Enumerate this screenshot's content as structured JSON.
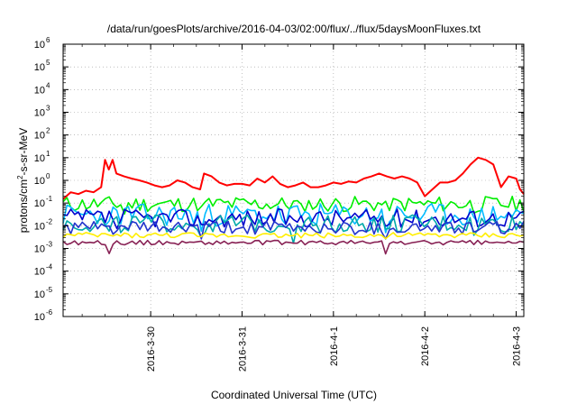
{
  "chart_data": {
    "type": "line",
    "title": "/data/run/goesPlots/archive/2016-04-03/02:00/flux/../flux/5daysMoonFluxes.txt",
    "xlabel": "Coordinated Universal Time (UTC)",
    "ylabel_parts": [
      "protons/cm",
      "2",
      "-s-sr-MeV"
    ],
    "y_scale": "log",
    "ylim": [
      1e-06,
      1000000.0
    ],
    "y_ticks": [
      {
        "base": "10",
        "exp": "6",
        "value": 1000000.0
      },
      {
        "base": "10",
        "exp": "5",
        "value": 100000.0
      },
      {
        "base": "10",
        "exp": "4",
        "value": 10000.0
      },
      {
        "base": "10",
        "exp": "3",
        "value": 1000.0
      },
      {
        "base": "10",
        "exp": "2",
        "value": 100.0
      },
      {
        "base": "10",
        "exp": "1",
        "value": 10.0
      },
      {
        "base": "10",
        "exp": "0",
        "value": 1.0
      },
      {
        "base": "10",
        "exp": "-1",
        "value": 0.1
      },
      {
        "base": "10",
        "exp": "-2",
        "value": 0.01
      },
      {
        "base": "10",
        "exp": "-3",
        "value": 0.001
      },
      {
        "base": "10",
        "exp": "-4",
        "value": 0.0001
      },
      {
        "base": "10",
        "exp": "-5",
        "value": 1e-05
      },
      {
        "base": "10",
        "exp": "-6",
        "value": 1e-06
      }
    ],
    "xlim": [
      "2016-03-29T01:00",
      "2016-04-03T02:00"
    ],
    "x_ticks": [
      {
        "label": "2016-3-30",
        "value": "2016-03-30T00:00"
      },
      {
        "label": "2016-3-31",
        "value": "2016-03-31T00:00"
      },
      {
        "label": "2016-4-1",
        "value": "2016-04-01T00:00"
      },
      {
        "label": "2016-4-2",
        "value": "2016-04-02T00:00"
      },
      {
        "label": "2016-4-3",
        "value": "2016-04-03T00:00"
      }
    ],
    "grid": true,
    "series": [
      {
        "color": "#ff0000",
        "points": [
          [
            "2016-03-29T01:00",
            0.15
          ],
          [
            "2016-03-29T03:00",
            0.3
          ],
          [
            "2016-03-29T05:00",
            0.25
          ],
          [
            "2016-03-29T07:00",
            0.35
          ],
          [
            "2016-03-29T09:00",
            0.3
          ],
          [
            "2016-03-29T11:00",
            0.5
          ],
          [
            "2016-03-29T12:00",
            8
          ],
          [
            "2016-03-29T13:00",
            3
          ],
          [
            "2016-03-29T14:00",
            8
          ],
          [
            "2016-03-29T15:00",
            2
          ],
          [
            "2016-03-29T17:00",
            1.5
          ],
          [
            "2016-03-29T19:00",
            1.2
          ],
          [
            "2016-03-29T21:00",
            1
          ],
          [
            "2016-03-29T23:00",
            0.8
          ],
          [
            "2016-03-30T01:00",
            0.6
          ],
          [
            "2016-03-30T03:00",
            0.5
          ],
          [
            "2016-03-30T05:00",
            0.6
          ],
          [
            "2016-03-30T07:00",
            1
          ],
          [
            "2016-03-30T09:00",
            0.8
          ],
          [
            "2016-03-30T11:00",
            0.5
          ],
          [
            "2016-03-30T13:00",
            0.4
          ],
          [
            "2016-03-30T14:00",
            2
          ],
          [
            "2016-03-30T16:00",
            1.5
          ],
          [
            "2016-03-30T18:00",
            0.8
          ],
          [
            "2016-03-30T20:00",
            0.6
          ],
          [
            "2016-03-30T22:00",
            0.7
          ],
          [
            "2016-03-31T00:00",
            0.7
          ],
          [
            "2016-03-31T02:00",
            0.6
          ],
          [
            "2016-03-31T04:00",
            1.2
          ],
          [
            "2016-03-31T06:00",
            0.8
          ],
          [
            "2016-03-31T08:00",
            1.5
          ],
          [
            "2016-03-31T10:00",
            0.7
          ],
          [
            "2016-03-31T12:00",
            0.5
          ],
          [
            "2016-03-31T14:00",
            0.6
          ],
          [
            "2016-03-31T16:00",
            0.8
          ],
          [
            "2016-03-31T18:00",
            0.5
          ],
          [
            "2016-03-31T20:00",
            0.5
          ],
          [
            "2016-03-31T22:00",
            0.6
          ],
          [
            "2016-04-01T00:00",
            0.8
          ],
          [
            "2016-04-01T02:00",
            0.7
          ],
          [
            "2016-04-01T04:00",
            0.9
          ],
          [
            "2016-04-01T06:00",
            0.8
          ],
          [
            "2016-04-01T08:00",
            1.2
          ],
          [
            "2016-04-01T10:00",
            1.5
          ],
          [
            "2016-04-01T12:00",
            2
          ],
          [
            "2016-04-01T14:00",
            1.5
          ],
          [
            "2016-04-01T16:00",
            1.2
          ],
          [
            "2016-04-01T18:00",
            1.5
          ],
          [
            "2016-04-01T20:00",
            1.2
          ],
          [
            "2016-04-01T22:00",
            0.8
          ],
          [
            "2016-04-02T00:00",
            0.2
          ],
          [
            "2016-04-02T02:00",
            0.4
          ],
          [
            "2016-04-02T04:00",
            0.8
          ],
          [
            "2016-04-02T06:00",
            0.8
          ],
          [
            "2016-04-02T08:00",
            1
          ],
          [
            "2016-04-02T10:00",
            2
          ],
          [
            "2016-04-02T12:00",
            5
          ],
          [
            "2016-04-02T14:00",
            10
          ],
          [
            "2016-04-02T16:00",
            8
          ],
          [
            "2016-04-02T18:00",
            5
          ],
          [
            "2016-04-02T20:00",
            0.5
          ],
          [
            "2016-04-02T22:00",
            1.5
          ],
          [
            "2016-04-03T00:00",
            1.2
          ],
          [
            "2016-04-03T01:00",
            0.4
          ],
          [
            "2016-04-03T02:00",
            0.25
          ]
        ]
      },
      {
        "color": "#00ee00",
        "base": 0.09,
        "amp": 0.35,
        "seed": 11,
        "dips": [
          [
            16,
            0.4
          ],
          [
            36,
            0.5
          ],
          [
            62,
            0.5
          ],
          [
            84,
            0.6
          ],
          [
            107,
            0.6
          ]
        ]
      },
      {
        "color": "#00bbff",
        "base": 0.03,
        "amp": 0.5,
        "seed": 23,
        "dips": [
          [
            12,
            0.25
          ],
          [
            36,
            0.2
          ],
          [
            58,
            0.3
          ],
          [
            84,
            0.25
          ],
          [
            107,
            0.3
          ]
        ]
      },
      {
        "color": "#0000cc",
        "base": 0.022,
        "amp": 0.4,
        "seed": 37,
        "dips": [
          [
            14,
            0.35
          ],
          [
            36,
            0.3
          ],
          [
            60,
            0.4
          ],
          [
            84,
            0.4
          ]
        ]
      },
      {
        "color": "#00aaaa",
        "base": 0.012,
        "amp": 0.4,
        "seed": 49,
        "dips": [
          [
            12,
            0.3
          ],
          [
            36,
            0.25
          ],
          [
            60,
            0.3
          ],
          [
            84,
            0.3
          ],
          [
            107,
            0.3
          ]
        ]
      },
      {
        "color": "#2233cc",
        "base": 0.008,
        "amp": 0.3,
        "seed": 61,
        "dips": [
          [
            36,
            0.5
          ],
          [
            84,
            0.5
          ]
        ]
      },
      {
        "color": "#ffee00",
        "base": 0.0038,
        "amp": 0.12,
        "seed": 73,
        "dips": [
          [
            36,
            0.7
          ],
          [
            84,
            0.7
          ]
        ]
      },
      {
        "color": "#882255",
        "base": 0.0018,
        "amp": 0.1,
        "seed": 89,
        "dips": [
          [
            12,
            0.3
          ],
          [
            84,
            0.3
          ]
        ]
      }
    ]
  }
}
